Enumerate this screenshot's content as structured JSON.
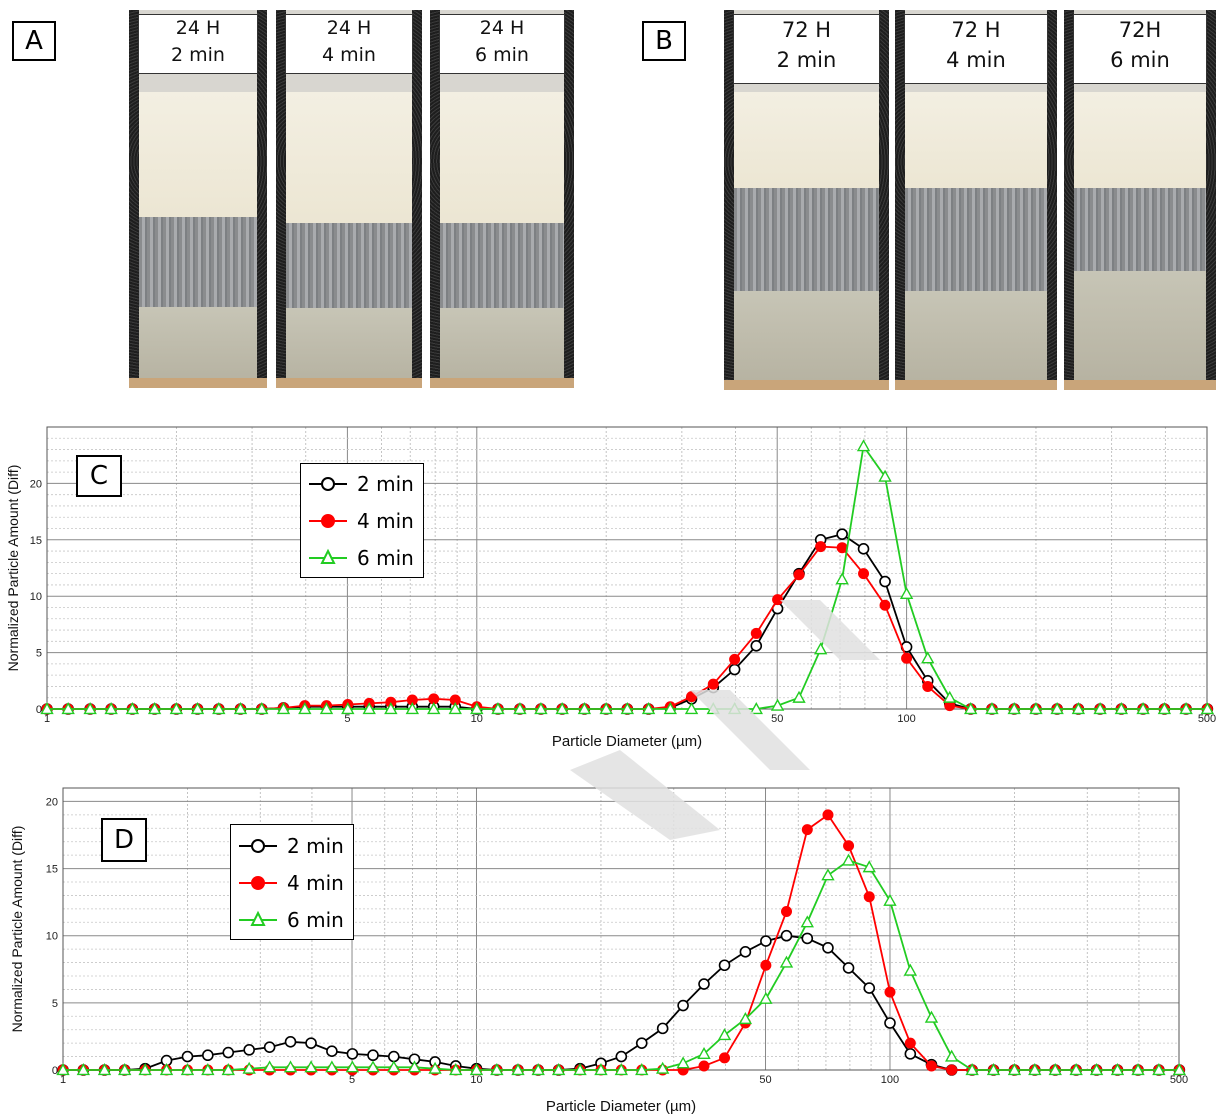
{
  "panels": {
    "A": {
      "label": "A",
      "vials": [
        {
          "line1": "24 H",
          "line2": "2 min"
        },
        {
          "line1": "24 H",
          "line2": "4 min"
        },
        {
          "line1": "24 H",
          "line2": "6 min"
        }
      ]
    },
    "B": {
      "label": "B",
      "vials": [
        {
          "line1": "72 H",
          "line2": "2 min"
        },
        {
          "line1": "72 H",
          "line2": "4 min"
        },
        {
          "line1": "72H",
          "line2": "6 min"
        }
      ]
    },
    "C": {
      "label": "C"
    },
    "D": {
      "label": "D"
    }
  },
  "colors": {
    "2 min": "#000000",
    "4 min": "#ff0000",
    "6 min": "#22cc22"
  },
  "chart_data": [
    {
      "id": "C",
      "type": "line",
      "xscale": "log",
      "xlim": [
        1,
        500
      ],
      "ylim": [
        0,
        25
      ],
      "xlabel": "Particle Diameter (µm)",
      "ylabel": "Normalized Particle Amount (Diff)",
      "xticks": [
        {
          "v": 1,
          "label": "1"
        },
        {
          "v": 5,
          "label": "5"
        },
        {
          "v": 10,
          "label": "10"
        },
        {
          "v": 50,
          "label": "50"
        },
        {
          "v": 100,
          "label": "100"
        },
        {
          "v": 500,
          "label": "500"
        }
      ],
      "yticks": [
        0,
        5,
        10,
        15,
        20
      ],
      "grid": true,
      "legend": "top-left",
      "series": [
        {
          "name": "2 min",
          "marker": "circle-open",
          "x": [
            1,
            1.12,
            1.26,
            1.41,
            1.58,
            1.78,
            2,
            2.24,
            2.51,
            2.82,
            3.16,
            3.55,
            3.98,
            4.47,
            5.01,
            5.62,
            6.31,
            7.08,
            7.94,
            8.91,
            10,
            11.2,
            12.6,
            14.1,
            15.8,
            17.8,
            20,
            22.4,
            25.1,
            28.2,
            31.6,
            35.5,
            39.8,
            44.7,
            50.1,
            56.2,
            63.1,
            70.8,
            79.4,
            89.1,
            100,
            112,
            126,
            141,
            158,
            178,
            200,
            224,
            251,
            282,
            316,
            355,
            398,
            447,
            501
          ],
          "y": [
            0,
            0,
            0,
            0,
            0,
            0,
            0,
            0,
            0,
            0,
            0,
            0.1,
            0.2,
            0.2,
            0.2,
            0.2,
            0.2,
            0.2,
            0.2,
            0.2,
            0,
            0,
            0,
            0,
            0,
            0,
            0,
            0,
            0,
            0.1,
            0.9,
            1.9,
            3.5,
            5.6,
            8.9,
            12,
            15,
            15.5,
            14.2,
            11.3,
            5.5,
            2.5,
            0.5,
            0,
            0,
            0,
            0,
            0,
            0,
            0,
            0,
            0,
            0,
            0,
            0
          ]
        },
        {
          "name": "4 min",
          "marker": "circle-filled",
          "x": [
            1,
            1.12,
            1.26,
            1.41,
            1.58,
            1.78,
            2,
            2.24,
            2.51,
            2.82,
            3.16,
            3.55,
            3.98,
            4.47,
            5.01,
            5.62,
            6.31,
            7.08,
            7.94,
            8.91,
            10,
            11.2,
            12.6,
            14.1,
            15.8,
            17.8,
            20,
            22.4,
            25.1,
            28.2,
            31.6,
            35.5,
            39.8,
            44.7,
            50.1,
            56.2,
            63.1,
            70.8,
            79.4,
            89.1,
            100,
            112,
            126,
            141,
            158,
            178,
            200,
            224,
            251,
            282,
            316,
            355,
            398,
            447,
            501
          ],
          "y": [
            0,
            0,
            0,
            0,
            0,
            0,
            0,
            0,
            0,
            0,
            0,
            0.1,
            0.3,
            0.3,
            0.4,
            0.5,
            0.6,
            0.8,
            0.9,
            0.8,
            0.2,
            0,
            0,
            0,
            0,
            0,
            0,
            0,
            0,
            0.2,
            1.1,
            2.2,
            4.4,
            6.7,
            9.7,
            11.9,
            14.4,
            14.3,
            12,
            9.2,
            4.5,
            2,
            0.3,
            0,
            0,
            0,
            0,
            0,
            0,
            0,
            0,
            0,
            0,
            0,
            0
          ]
        },
        {
          "name": "6 min",
          "marker": "triangle-open",
          "x": [
            1,
            1.12,
            1.26,
            1.41,
            1.58,
            1.78,
            2,
            2.24,
            2.51,
            2.82,
            3.16,
            3.55,
            3.98,
            4.47,
            5.01,
            5.62,
            6.31,
            7.08,
            7.94,
            8.91,
            10,
            11.2,
            12.6,
            14.1,
            15.8,
            17.8,
            20,
            22.4,
            25.1,
            28.2,
            31.6,
            35.5,
            39.8,
            44.7,
            50.1,
            56.2,
            63.1,
            70.8,
            79.4,
            89.1,
            100,
            112,
            126,
            141,
            158,
            178,
            200,
            224,
            251,
            282,
            316,
            355,
            398,
            447,
            501
          ],
          "y": [
            0,
            0,
            0,
            0,
            0,
            0,
            0,
            0,
            0,
            0,
            0,
            0,
            0,
            0,
            0,
            0,
            0,
            0,
            0,
            0,
            0,
            0,
            0,
            0,
            0,
            0,
            0,
            0,
            0,
            0,
            0,
            0,
            0,
            0,
            0.3,
            1,
            5.3,
            11.5,
            23.3,
            20.6,
            10.2,
            4.5,
            1,
            0,
            0,
            0,
            0,
            0,
            0,
            0,
            0,
            0,
            0,
            0,
            0
          ]
        }
      ]
    },
    {
      "id": "D",
      "type": "line",
      "xscale": "log",
      "xlim": [
        1,
        500
      ],
      "ylim": [
        0,
        21
      ],
      "xlabel": "Particle Diameter (µm)",
      "ylabel": "Normalized Particle Amount (Diff)",
      "xticks": [
        {
          "v": 1,
          "label": "1"
        },
        {
          "v": 5,
          "label": "5"
        },
        {
          "v": 10,
          "label": "10"
        },
        {
          "v": 50,
          "label": "50"
        },
        {
          "v": 100,
          "label": "100"
        },
        {
          "v": 500,
          "label": "500"
        }
      ],
      "yticks": [
        0,
        5,
        10,
        15,
        20
      ],
      "grid": true,
      "legend": "top-left",
      "series": [
        {
          "name": "2 min",
          "marker": "circle-open",
          "x": [
            1,
            1.12,
            1.26,
            1.41,
            1.58,
            1.78,
            2,
            2.24,
            2.51,
            2.82,
            3.16,
            3.55,
            3.98,
            4.47,
            5.01,
            5.62,
            6.31,
            7.08,
            7.94,
            8.91,
            10,
            11.2,
            12.6,
            14.1,
            15.8,
            17.8,
            20,
            22.4,
            25.1,
            28.2,
            31.6,
            35.5,
            39.8,
            44.7,
            50.1,
            56.2,
            63.1,
            70.8,
            79.4,
            89.1,
            100,
            112,
            126,
            141,
            158,
            178,
            200,
            224,
            251,
            282,
            316,
            355,
            398,
            447,
            501
          ],
          "y": [
            0,
            0,
            0,
            0,
            0.1,
            0.7,
            1,
            1.1,
            1.3,
            1.5,
            1.7,
            2.1,
            2,
            1.4,
            1.2,
            1.1,
            1,
            0.8,
            0.6,
            0.3,
            0.1,
            0,
            0,
            0,
            0,
            0.1,
            0.5,
            1,
            2,
            3.1,
            4.8,
            6.4,
            7.8,
            8.8,
            9.6,
            10,
            9.8,
            9.1,
            7.6,
            6.1,
            3.5,
            1.2,
            0.4,
            0,
            0,
            0,
            0,
            0,
            0,
            0,
            0,
            0,
            0,
            0,
            0
          ]
        },
        {
          "name": "4 min",
          "marker": "circle-filled",
          "x": [
            1,
            1.12,
            1.26,
            1.41,
            1.58,
            1.78,
            2,
            2.24,
            2.51,
            2.82,
            3.16,
            3.55,
            3.98,
            4.47,
            5.01,
            5.62,
            6.31,
            7.08,
            7.94,
            8.91,
            10,
            11.2,
            12.6,
            14.1,
            15.8,
            17.8,
            20,
            22.4,
            25.1,
            28.2,
            31.6,
            35.5,
            39.8,
            44.7,
            50.1,
            56.2,
            63.1,
            70.8,
            79.4,
            89.1,
            100,
            112,
            126,
            141,
            158,
            178,
            200,
            224,
            251,
            282,
            316,
            355,
            398,
            447,
            501
          ],
          "y": [
            0,
            0,
            0,
            0,
            0,
            0,
            0,
            0,
            0,
            0,
            0,
            0,
            0,
            0,
            0,
            0,
            0,
            0,
            0,
            0,
            0,
            0,
            0,
            0,
            0,
            0,
            0,
            0,
            0,
            0,
            0,
            0.3,
            0.9,
            3.5,
            7.8,
            11.8,
            17.9,
            19,
            16.7,
            12.9,
            5.8,
            2,
            0.3,
            0,
            0,
            0,
            0,
            0,
            0,
            0,
            0,
            0,
            0,
            0,
            0
          ]
        },
        {
          "name": "6 min",
          "marker": "triangle-open",
          "x": [
            1,
            1.12,
            1.26,
            1.41,
            1.58,
            1.78,
            2,
            2.24,
            2.51,
            2.82,
            3.16,
            3.55,
            3.98,
            4.47,
            5.01,
            5.62,
            6.31,
            7.08,
            7.94,
            8.91,
            10,
            11.2,
            12.6,
            14.1,
            15.8,
            17.8,
            20,
            22.4,
            25.1,
            28.2,
            31.6,
            35.5,
            39.8,
            44.7,
            50.1,
            56.2,
            63.1,
            70.8,
            79.4,
            89.1,
            100,
            112,
            126,
            141,
            158,
            178,
            200,
            224,
            251,
            282,
            316,
            355,
            398,
            447,
            501
          ],
          "y": [
            0,
            0,
            0,
            0,
            0,
            0,
            0,
            0,
            0,
            0.1,
            0.2,
            0.2,
            0.2,
            0.2,
            0.2,
            0.2,
            0.2,
            0.2,
            0.1,
            0,
            0,
            0,
            0,
            0,
            0,
            0,
            0,
            0,
            0,
            0.1,
            0.5,
            1.2,
            2.6,
            3.8,
            5.3,
            8,
            11,
            14.5,
            15.6,
            15.1,
            12.6,
            7.4,
            3.9,
            1,
            0,
            0,
            0,
            0,
            0,
            0,
            0,
            0,
            0,
            0,
            0
          ]
        }
      ]
    }
  ]
}
